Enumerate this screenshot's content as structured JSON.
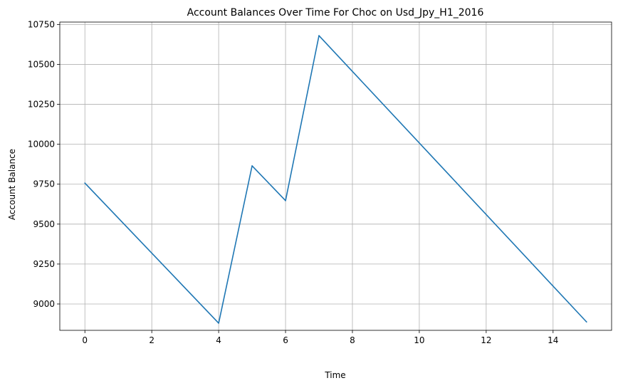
{
  "chart_data": {
    "type": "line",
    "title": "Account Balances Over Time For Choc on Usd_Jpy_H1_2016",
    "xlabel": "Time",
    "ylabel": "Account Balance",
    "grid": true,
    "xlim": [
      -0.75,
      15.75
    ],
    "ylim": [
      8835,
      10765
    ],
    "xticks": [
      0,
      2,
      4,
      6,
      8,
      10,
      12,
      14
    ],
    "yticks": [
      9000,
      9250,
      9500,
      9750,
      10000,
      10250,
      10500,
      10750
    ],
    "series": [
      {
        "name": "Account Balance",
        "color": "#1f77b4",
        "x": [
          0,
          4,
          5,
          6,
          7,
          15
        ],
        "y": [
          9757,
          8880,
          9865,
          9647,
          10680,
          8888
        ]
      }
    ]
  }
}
